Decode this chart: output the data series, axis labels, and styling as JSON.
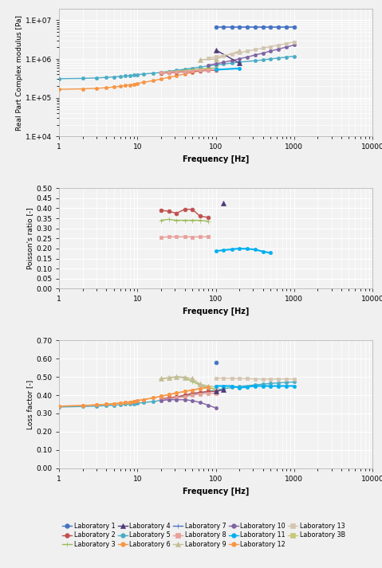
{
  "plot1": {
    "ylabel": "Real Part Complex modulus [Pa]",
    "xlabel": "Frequency [Hz]",
    "series": {
      "lab1": {
        "freq": [
          100,
          125,
          160,
          200,
          250,
          315,
          400,
          500,
          630,
          800,
          1000
        ],
        "vals": [
          6500000,
          6500000,
          6500000,
          6500000,
          6500000,
          6500000,
          6500000,
          6500000,
          6500000,
          6500000,
          6500000
        ]
      },
      "lab5": {
        "freq": [
          1,
          2,
          3,
          4,
          5,
          6,
          7,
          8,
          9,
          10,
          12,
          16,
          20,
          25,
          31.5,
          40,
          50,
          63,
          80,
          100,
          125,
          160,
          200,
          315,
          400,
          500,
          630,
          800,
          1000
        ],
        "vals": [
          310000,
          315000,
          325000,
          335000,
          345000,
          355000,
          365000,
          375000,
          385000,
          395000,
          410000,
          430000,
          450000,
          480000,
          510000,
          545000,
          580000,
          620000,
          660000,
          700000,
          740000,
          785000,
          830000,
          900000,
          950000,
          1000000,
          1060000,
          1120000,
          1180000
        ]
      },
      "lab6": {
        "freq": [
          1,
          2,
          3,
          4,
          5,
          6,
          7,
          8,
          9,
          10,
          12,
          16,
          20,
          25,
          31.5,
          40,
          50,
          63,
          80
        ],
        "vals": [
          165000,
          170000,
          175000,
          182000,
          190000,
          198000,
          207000,
          215000,
          224000,
          233000,
          250000,
          278000,
          303000,
          335000,
          372000,
          410000,
          450000,
          495000,
          545000
        ]
      },
      "lab2": {
        "freq": [
          20,
          25,
          31.5,
          40,
          50,
          63,
          80,
          100
        ],
        "vals": [
          430000,
          440000,
          455000,
          465000,
          480000,
          495000,
          505000,
          515000
        ]
      },
      "lab3": {
        "freq": [
          20,
          25,
          31.5,
          40,
          50,
          63,
          80,
          100
        ],
        "vals": [
          450000,
          462000,
          480000,
          510000,
          530000,
          555000,
          575000,
          585000
        ]
      },
      "lab8": {
        "freq": [
          20,
          25,
          31.5,
          40,
          50,
          63,
          80,
          100
        ],
        "vals": [
          440000,
          455000,
          465000,
          478000,
          492000,
          510000,
          520000,
          535000
        ]
      },
      "lab9": {
        "freq": [
          63,
          100,
          200
        ],
        "vals": [
          950000,
          1000000,
          1600000
        ]
      },
      "lab10": {
        "freq": [
          80,
          100,
          125,
          160,
          200,
          250,
          315,
          400,
          500,
          630,
          800,
          1000
        ],
        "vals": [
          700000,
          750000,
          820000,
          910000,
          1010000,
          1120000,
          1260000,
          1420000,
          1600000,
          1800000,
          2030000,
          2290000
        ]
      },
      "lab11": {
        "freq": [
          100,
          200
        ],
        "vals": [
          530000,
          570000
        ]
      },
      "lab4": {
        "freq": [
          100,
          200
        ],
        "vals": [
          1700000,
          780000
        ]
      },
      "lab13": {
        "freq": [
          80,
          100,
          125,
          160,
          200,
          250,
          315,
          400,
          500,
          630,
          800,
          1000
        ],
        "vals": [
          1060000,
          1140000,
          1230000,
          1340000,
          1460000,
          1590000,
          1740000,
          1900000,
          2080000,
          2280000,
          2500000,
          2740000
        ]
      }
    }
  },
  "plot2": {
    "ylabel": "Poisson's ratio [-]",
    "xlabel": "Frequency [Hz]",
    "series": {
      "lab2": {
        "freq": [
          20,
          25,
          31.5,
          40,
          50,
          63,
          80
        ],
        "vals": [
          0.39,
          0.385,
          0.375,
          0.395,
          0.395,
          0.36,
          0.355
        ]
      },
      "lab3": {
        "freq": [
          20,
          25,
          31.5,
          40,
          50,
          63,
          80
        ],
        "vals": [
          0.34,
          0.345,
          0.34,
          0.34,
          0.34,
          0.34,
          0.335
        ]
      },
      "lab8": {
        "freq": [
          20,
          25,
          31.5,
          40,
          50,
          63,
          80
        ],
        "vals": [
          0.255,
          0.258,
          0.258,
          0.258,
          0.257,
          0.258,
          0.258
        ]
      },
      "lab11": {
        "freq": [
          100,
          125,
          160,
          200,
          250,
          315,
          400,
          500
        ],
        "vals": [
          0.187,
          0.192,
          0.196,
          0.2,
          0.198,
          0.195,
          0.185,
          0.178
        ]
      },
      "lab4": {
        "freq": [
          125
        ],
        "vals": [
          0.425
        ]
      }
    }
  },
  "plot3": {
    "ylabel": "Loss factor [-]",
    "xlabel": "Frequency [Hz]",
    "series": {
      "lab1": {
        "freq": [
          100
        ],
        "vals": [
          0.58
        ]
      },
      "lab5": {
        "freq": [
          1,
          2,
          3,
          4,
          5,
          6,
          7,
          8,
          9,
          10,
          12,
          16,
          20,
          25,
          31.5,
          40,
          50,
          63,
          80,
          100,
          125,
          160,
          200,
          315,
          400,
          500,
          630,
          800,
          1000
        ],
        "vals": [
          0.335,
          0.338,
          0.34,
          0.343,
          0.345,
          0.348,
          0.35,
          0.352,
          0.354,
          0.356,
          0.36,
          0.365,
          0.372,
          0.38,
          0.388,
          0.396,
          0.404,
          0.412,
          0.42,
          0.428,
          0.435,
          0.442,
          0.448,
          0.456,
          0.46,
          0.464,
          0.467,
          0.47,
          0.472
        ]
      },
      "lab2": {
        "freq": [
          20,
          25,
          31.5,
          40,
          50,
          63,
          80,
          100
        ],
        "vals": [
          0.38,
          0.385,
          0.39,
          0.4,
          0.41,
          0.415,
          0.42,
          0.42
        ]
      },
      "lab3": {
        "freq": [
          20,
          25,
          31.5,
          40,
          50,
          63,
          80,
          100
        ],
        "vals": [
          0.49,
          0.495,
          0.5,
          0.495,
          0.475,
          0.455,
          0.44,
          0.435
        ]
      },
      "lab6": {
        "freq": [
          1,
          2,
          3,
          4,
          5,
          6,
          7,
          8,
          9,
          10,
          12,
          16,
          20,
          25,
          31.5,
          40,
          50,
          63,
          80
        ],
        "vals": [
          0.34,
          0.343,
          0.347,
          0.35,
          0.353,
          0.357,
          0.36,
          0.363,
          0.367,
          0.37,
          0.376,
          0.385,
          0.394,
          0.403,
          0.412,
          0.42,
          0.428,
          0.436,
          0.443
        ]
      },
      "lab8": {
        "freq": [
          20,
          25,
          31.5,
          40,
          50,
          63,
          80,
          100
        ],
        "vals": [
          0.375,
          0.38,
          0.385,
          0.39,
          0.4,
          0.405,
          0.41,
          0.41
        ]
      },
      "lab9": {
        "freq": [
          20,
          25,
          31.5,
          40,
          50,
          63,
          80,
          100
        ],
        "vals": [
          0.49,
          0.495,
          0.5,
          0.498,
          0.49,
          0.46,
          0.45,
          0.445
        ]
      },
      "lab10": {
        "freq": [
          20,
          25,
          31.5,
          40,
          50,
          63,
          80,
          100
        ],
        "vals": [
          0.37,
          0.375,
          0.375,
          0.375,
          0.37,
          0.36,
          0.345,
          0.33
        ]
      },
      "lab11": {
        "freq": [
          100,
          125,
          160,
          200,
          250,
          315,
          400,
          500,
          630,
          800,
          1000
        ],
        "vals": [
          0.45,
          0.45,
          0.45,
          0.44,
          0.445,
          0.45,
          0.45,
          0.45,
          0.45,
          0.45,
          0.45
        ]
      },
      "lab12": {
        "freq": [
          1,
          2,
          3,
          4,
          5,
          6,
          7,
          8,
          9,
          10,
          12,
          16,
          20,
          25,
          31.5,
          40,
          50,
          63,
          80
        ],
        "vals": [
          0.34,
          0.343,
          0.347,
          0.35,
          0.353,
          0.357,
          0.36,
          0.363,
          0.367,
          0.37,
          0.376,
          0.385,
          0.394,
          0.403,
          0.412,
          0.42,
          0.428,
          0.436,
          0.443
        ]
      },
      "lab4": {
        "freq": [
          100,
          125
        ],
        "vals": [
          0.42,
          0.43
        ]
      },
      "lab13": {
        "freq": [
          100,
          125,
          160,
          200,
          250,
          315,
          400,
          500,
          630,
          800,
          1000
        ],
        "vals": [
          0.493,
          0.493,
          0.492,
          0.491,
          0.49,
          0.489,
          0.488,
          0.488,
          0.488,
          0.488,
          0.488
        ]
      }
    }
  },
  "lab_styles": {
    "lab1": {
      "color": "#4472C4",
      "marker": "o",
      "ms": 3.5,
      "lw": 1.2,
      "ls": "-"
    },
    "lab2": {
      "color": "#C0504D",
      "marker": "o",
      "ms": 3.5,
      "lw": 1.0,
      "ls": "-"
    },
    "lab3": {
      "color": "#9BBB59",
      "marker": "+",
      "ms": 4.0,
      "lw": 1.0,
      "ls": "-"
    },
    "lab4": {
      "color": "#4F3A7A",
      "marker": "^",
      "ms": 4.0,
      "lw": 1.0,
      "ls": "-"
    },
    "lab5": {
      "color": "#4BACC6",
      "marker": "o",
      "ms": 3.0,
      "lw": 1.0,
      "ls": "-"
    },
    "lab6": {
      "color": "#F79646",
      "marker": "o",
      "ms": 3.0,
      "lw": 1.0,
      "ls": "-"
    },
    "lab7": {
      "color": "#4472C4",
      "marker": "+",
      "ms": 4.0,
      "lw": 1.0,
      "ls": "-"
    },
    "lab8": {
      "color": "#E8A09A",
      "marker": "s",
      "ms": 3.0,
      "lw": 1.0,
      "ls": "-"
    },
    "lab9": {
      "color": "#C4BD97",
      "marker": "^",
      "ms": 4.0,
      "lw": 1.0,
      "ls": "-"
    },
    "lab10": {
      "color": "#8064A2",
      "marker": "o",
      "ms": 3.0,
      "lw": 1.0,
      "ls": "-"
    },
    "lab11": {
      "color": "#00B0F0",
      "marker": "o",
      "ms": 3.0,
      "lw": 1.5,
      "ls": "-"
    },
    "lab12": {
      "color": "#F79646",
      "marker": "o",
      "ms": 3.0,
      "lw": 1.0,
      "ls": "-"
    },
    "lab13": {
      "color": "#D3C5B0",
      "marker": "s",
      "ms": 3.0,
      "lw": 1.0,
      "ls": "-"
    },
    "lab3b": {
      "color": "#C8C87A",
      "marker": "s",
      "ms": 3.0,
      "lw": 1.0,
      "ls": "-"
    }
  },
  "legend": [
    {
      "key": "lab1",
      "name": "Laboratory 1",
      "color": "#4472C4",
      "marker": "o"
    },
    {
      "key": "lab2",
      "name": "Laboratory 2",
      "color": "#C0504D",
      "marker": "o"
    },
    {
      "key": "lab3",
      "name": "Laboratory 3",
      "color": "#9BBB59",
      "marker": "+"
    },
    {
      "key": "lab4",
      "name": "Laboratory 4",
      "color": "#4F3A7A",
      "marker": "^"
    },
    {
      "key": "lab5",
      "name": "Laboratory 5",
      "color": "#4BACC6",
      "marker": "o"
    },
    {
      "key": "lab6",
      "name": "Laboratory 6",
      "color": "#F79646",
      "marker": "o"
    },
    {
      "key": "lab7",
      "name": "Laboratory 7",
      "color": "#4472C4",
      "marker": "+"
    },
    {
      "key": "lab8",
      "name": "Laboratory 8",
      "color": "#E8A09A",
      "marker": "s"
    },
    {
      "key": "lab9",
      "name": "Laboratory 9",
      "color": "#C4BD97",
      "marker": "^"
    },
    {
      "key": "lab10",
      "name": "Laboratory 10",
      "color": "#8064A2",
      "marker": "o"
    },
    {
      "key": "lab11",
      "name": "Laboratory 11",
      "color": "#00B0F0",
      "marker": "o"
    },
    {
      "key": "lab12",
      "name": "Laboratory 12",
      "color": "#F79646",
      "marker": "o"
    },
    {
      "key": "lab13",
      "name": "Laboratory 13",
      "color": "#D3C5B0",
      "marker": "s"
    },
    {
      "key": "lab3b",
      "name": "Laboratory 3B",
      "color": "#C8C87A",
      "marker": "s"
    }
  ],
  "bg_color": "#F2F2F2",
  "grid_color": "#FFFFFF",
  "grid_lw": 0.8
}
